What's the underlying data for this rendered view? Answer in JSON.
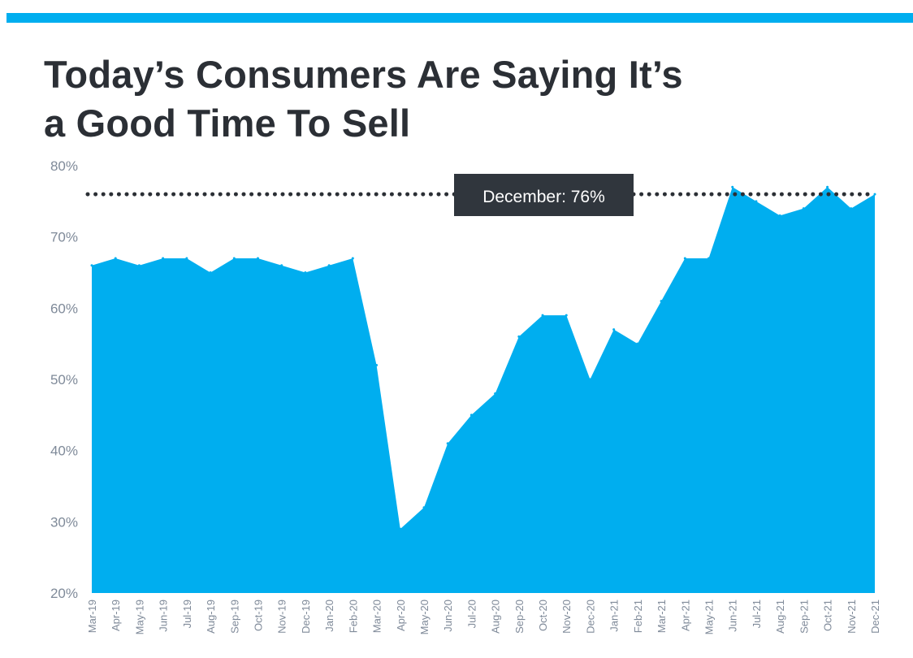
{
  "colors": {
    "accent": "#00AEEF",
    "title": "#2B2F35",
    "axis_text": "#7F8A99",
    "callout_bg": "#30363D",
    "callout_text": "#FFFFFF",
    "reference_line": "#2B2F35"
  },
  "header": {
    "title_line1": "Today’s Consumers Are Saying It’s",
    "title_line2": "a Good Time To Sell"
  },
  "chart_data": {
    "type": "area",
    "title": "Today’s Consumers Are Saying It’s a Good Time To Sell",
    "xlabel": "",
    "ylabel": "",
    "ylim": [
      20,
      80
    ],
    "yticks": [
      20,
      30,
      40,
      50,
      60,
      70,
      80
    ],
    "ytick_labels": [
      "20%",
      "30%",
      "40%",
      "50%",
      "60%",
      "70%",
      "80%"
    ],
    "grid": false,
    "categories": [
      "Mar-19",
      "Apr-19",
      "May-19",
      "Jun-19",
      "Jul-19",
      "Aug-19",
      "Sep-19",
      "Oct-19",
      "Nov-19",
      "Dec-19",
      "Jan-20",
      "Feb-20",
      "Mar-20",
      "Apr-20",
      "May-20",
      "Jun-20",
      "Jul-20",
      "Aug-20",
      "Sep-20",
      "Oct-20",
      "Nov-20",
      "Dec-20",
      "Jan-21",
      "Feb-21",
      "Mar-21",
      "Apr-21",
      "May-21",
      "Jun-21",
      "Jul-21",
      "Aug-21",
      "Sep-21",
      "Oct-21",
      "Nov-21",
      "Dec-21"
    ],
    "values": [
      66,
      67,
      66,
      67,
      67,
      65,
      67,
      67,
      66,
      65,
      66,
      67,
      52,
      29,
      32,
      41,
      45,
      48,
      56,
      59,
      59,
      50,
      57,
      55,
      61,
      67,
      67,
      77,
      75,
      73,
      74,
      77,
      74,
      76
    ],
    "reference_line": {
      "value": 76,
      "style": "dotted"
    },
    "annotation": {
      "text": "December: 76%",
      "value": 76
    }
  }
}
